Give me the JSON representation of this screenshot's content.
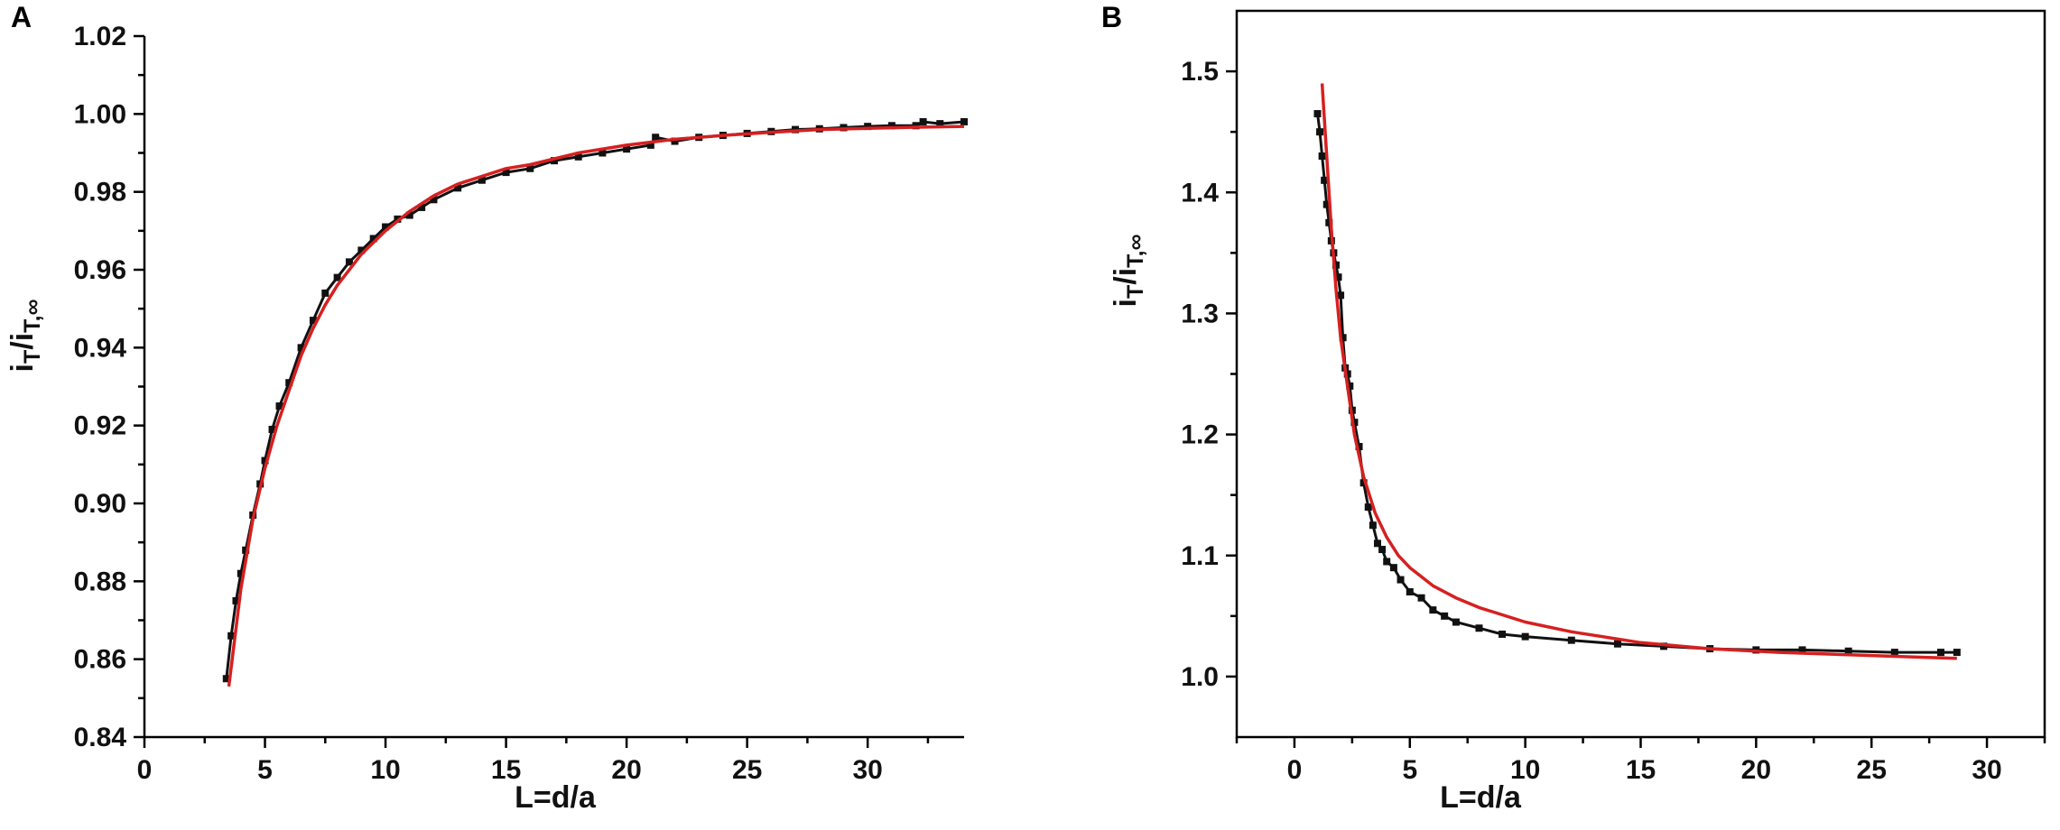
{
  "chart_data": [
    {
      "panel_label": "A",
      "type": "line",
      "xlabel": "L=d/a",
      "ylabel_parts": {
        "base1": "i",
        "sub1": "T",
        "sep": "/i",
        "sub2": "T,∞"
      },
      "xlim": [
        0,
        34
      ],
      "ylim": [
        0.84,
        1.02
      ],
      "xticks": [
        0,
        5,
        10,
        15,
        20,
        25,
        30
      ],
      "xtick_labels": [
        "0",
        "5",
        "10",
        "15",
        "20",
        "25",
        "30"
      ],
      "yticks": [
        0.84,
        0.86,
        0.88,
        0.9,
        0.92,
        0.94,
        0.96,
        0.98,
        1.0,
        1.02
      ],
      "ytick_labels": [
        "0.84",
        "0.86",
        "0.88",
        "0.90",
        "0.92",
        "0.94",
        "0.96",
        "0.98",
        "1.00",
        "1.02"
      ],
      "grid": false,
      "series": [
        {
          "kind": "experimental",
          "color": "#111111",
          "marker": "square",
          "x": [
            3.4,
            3.6,
            3.8,
            4.0,
            4.2,
            4.5,
            4.8,
            5.0,
            5.3,
            5.6,
            6.0,
            6.5,
            7.0,
            7.5,
            8.0,
            8.5,
            9.0,
            9.5,
            10.0,
            10.5,
            11.0,
            11.5,
            12.0,
            13.0,
            14.0,
            15.0,
            16.0,
            17.0,
            18.0,
            19.0,
            20.0,
            21.0,
            21.2,
            22.0,
            23.0,
            24.0,
            25.0,
            26.0,
            27.0,
            28.0,
            29.0,
            30.0,
            31.0,
            32.0,
            32.3,
            33.0,
            34.0
          ],
          "y": [
            0.855,
            0.866,
            0.875,
            0.882,
            0.888,
            0.897,
            0.905,
            0.911,
            0.919,
            0.925,
            0.931,
            0.94,
            0.947,
            0.954,
            0.958,
            0.962,
            0.965,
            0.968,
            0.971,
            0.973,
            0.974,
            0.976,
            0.978,
            0.981,
            0.983,
            0.985,
            0.986,
            0.988,
            0.989,
            0.99,
            0.991,
            0.992,
            0.994,
            0.993,
            0.994,
            0.9945,
            0.995,
            0.9955,
            0.996,
            0.9962,
            0.9965,
            0.9968,
            0.997,
            0.997,
            0.998,
            0.9975,
            0.998
          ]
        },
        {
          "kind": "fit",
          "color": "#d62020",
          "marker": "none",
          "x": [
            3.5,
            4.0,
            4.5,
            5.0,
            5.5,
            6.0,
            6.5,
            7.0,
            7.5,
            8.0,
            9.0,
            10.0,
            11.0,
            12.0,
            13.0,
            14.0,
            15.0,
            16.0,
            18.0,
            20.0,
            22.0,
            24.0,
            26.0,
            28.0,
            30.0,
            32.0,
            34.0
          ],
          "y": [
            0.853,
            0.878,
            0.896,
            0.909,
            0.92,
            0.929,
            0.938,
            0.945,
            0.951,
            0.956,
            0.964,
            0.97,
            0.975,
            0.979,
            0.982,
            0.984,
            0.986,
            0.987,
            0.99,
            0.992,
            0.9935,
            0.9945,
            0.9953,
            0.996,
            0.9963,
            0.9966,
            0.9968
          ]
        }
      ]
    },
    {
      "panel_label": "B",
      "type": "line",
      "xlabel": "L=d/a",
      "ylabel_parts": {
        "base1": "i",
        "sub1": "T",
        "sep": "/i",
        "sub2": "T,∞"
      },
      "xlim": [
        -2.5,
        32.5
      ],
      "ylim": [
        0.95,
        1.55
      ],
      "xticks": [
        0,
        5,
        10,
        15,
        20,
        25,
        30
      ],
      "xtick_labels": [
        "0",
        "5",
        "10",
        "15",
        "20",
        "25",
        "30"
      ],
      "yticks": [
        1.0,
        1.1,
        1.2,
        1.3,
        1.4,
        1.5
      ],
      "ytick_labels": [
        "1.0",
        "1.1",
        "1.2",
        "1.3",
        "1.4",
        "1.5"
      ],
      "grid": false,
      "series": [
        {
          "kind": "experimental",
          "color": "#111111",
          "marker": "square",
          "x": [
            1.0,
            1.1,
            1.2,
            1.3,
            1.4,
            1.5,
            1.6,
            1.7,
            1.8,
            1.9,
            2.0,
            2.1,
            2.2,
            2.3,
            2.4,
            2.5,
            2.6,
            2.8,
            3.0,
            3.2,
            3.4,
            3.6,
            3.8,
            4.0,
            4.3,
            4.6,
            5.0,
            5.5,
            6.0,
            6.5,
            7.0,
            8.0,
            9.0,
            10.0,
            12.0,
            14.0,
            16.0,
            18.0,
            20.0,
            22.0,
            24.0,
            26.0,
            28.0,
            28.7
          ],
          "y": [
            1.465,
            1.45,
            1.43,
            1.41,
            1.39,
            1.375,
            1.36,
            1.35,
            1.34,
            1.33,
            1.315,
            1.28,
            1.255,
            1.25,
            1.24,
            1.22,
            1.21,
            1.19,
            1.16,
            1.14,
            1.125,
            1.11,
            1.105,
            1.095,
            1.09,
            1.08,
            1.07,
            1.065,
            1.055,
            1.05,
            1.045,
            1.04,
            1.035,
            1.033,
            1.03,
            1.027,
            1.025,
            1.023,
            1.022,
            1.022,
            1.021,
            1.02,
            1.02,
            1.02
          ]
        },
        {
          "kind": "fit",
          "color": "#d62020",
          "marker": "none",
          "x": [
            1.2,
            1.4,
            1.6,
            1.8,
            2.0,
            2.3,
            2.6,
            3.0,
            3.5,
            4.0,
            4.5,
            5.0,
            6.0,
            7.0,
            8.0,
            10.0,
            12.0,
            15.0,
            18.0,
            21.0,
            24.0,
            27.0,
            28.7
          ],
          "y": [
            1.49,
            1.43,
            1.37,
            1.32,
            1.28,
            1.24,
            1.2,
            1.165,
            1.135,
            1.115,
            1.1,
            1.09,
            1.075,
            1.065,
            1.057,
            1.045,
            1.037,
            1.028,
            1.023,
            1.02,
            1.018,
            1.016,
            1.015
          ]
        }
      ]
    }
  ]
}
